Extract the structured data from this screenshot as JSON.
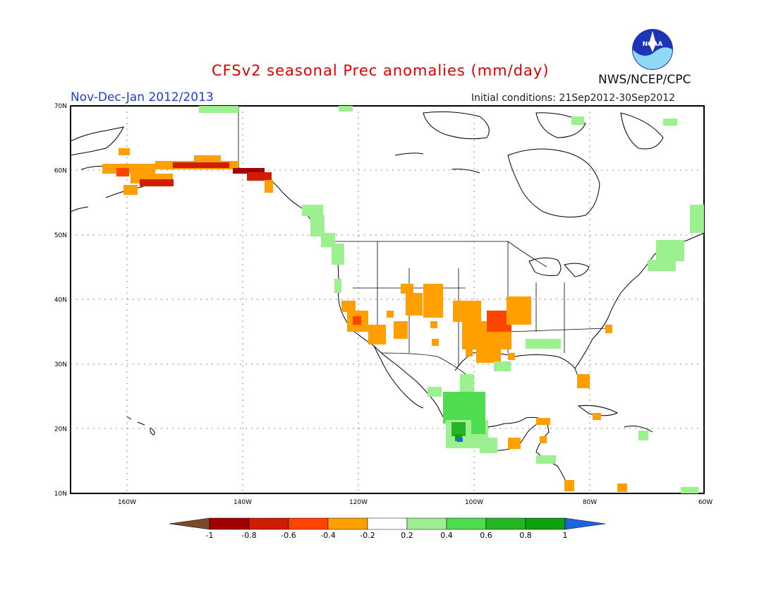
{
  "title": "CFSv2 seasonal Prec anomalies (mm/day)",
  "period": "Nov-Dec-Jan 2012/2013",
  "initial_conditions": "Initial conditions: 21Sep2012-30Sep2012",
  "agency": "NWS/NCEP/CPC",
  "logo_text": "NOAA",
  "logo_icon": "noaa-logo-icon",
  "map": {
    "lat_labels": [
      "70N",
      "60N",
      "50N",
      "40N",
      "30N",
      "20N",
      "10N"
    ],
    "lon_labels": [
      "160W",
      "140W",
      "120W",
      "100W",
      "80W",
      "60W"
    ]
  },
  "colorbar": {
    "labels": [
      "-1",
      "-0.8",
      "-0.6",
      "-0.4",
      "-0.2",
      "0.2",
      "0.4",
      "0.6",
      "0.8",
      "1"
    ],
    "colors": [
      "#7b4a2a",
      "#a00000",
      "#d01c00",
      "#ff4400",
      "#ffa000",
      "#ffffff",
      "#9cf090",
      "#50dc50",
      "#24b424",
      "#10a010",
      "#1e64e0"
    ]
  }
}
